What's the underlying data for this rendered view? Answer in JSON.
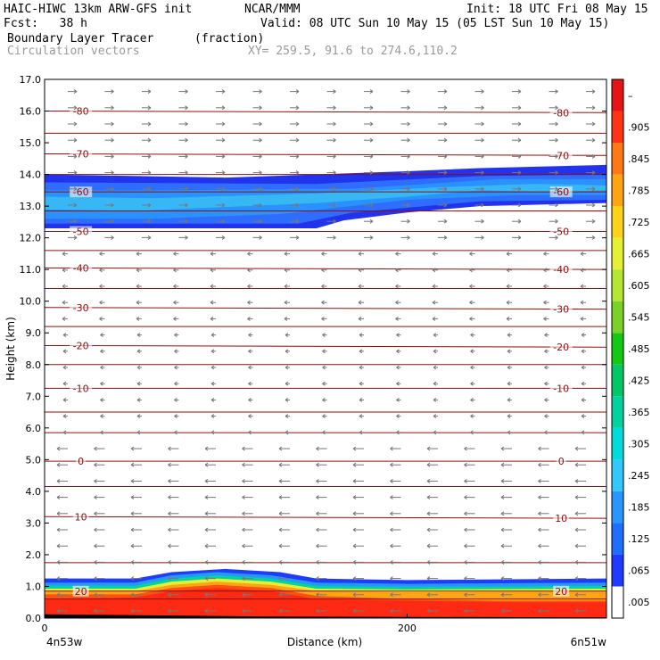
{
  "header": {
    "model": "HAIC-HIWC 13km ARW-GFS init",
    "org": "NCAR/MMM",
    "init": "Init: 18 UTC Fri 08 May 15",
    "fcst": "Fcst:   38 h",
    "valid": "Valid: 08 UTC Sun 10 May 15 (05 LST Sun 10 May 15)",
    "field": "Boundary Layer Tracer",
    "units": "(fraction)",
    "vectors": "Circulation vectors",
    "xy": "XY= 259.5, 91.6 to 274.6,110.2"
  },
  "chart_data": {
    "type": "heatmap",
    "xlabel": "Distance (km)",
    "ylabel": "Height (km)",
    "x_range": [
      0,
      310
    ],
    "ylim": [
      0,
      17
    ],
    "x_ticks": [
      0,
      200
    ],
    "x_tick_labels": [
      "0",
      "200"
    ],
    "x_end_labels": {
      "left": "4n53w",
      "right": "6n51w"
    },
    "y_ticks": [
      0,
      1,
      2,
      3,
      4,
      5,
      6,
      7,
      8,
      9,
      10,
      11,
      12,
      13,
      14,
      15,
      16,
      17
    ],
    "y_tick_labels": [
      "0.0",
      "1.0",
      "2.0",
      "3.0",
      "4.0",
      "5.0",
      "6.0",
      "7.0",
      "8.0",
      "9.0",
      "10.0",
      "11.0",
      "12.0",
      "13.0",
      "14.0",
      "15.0",
      "16.0",
      "17.0"
    ],
    "colorbar": {
      "labels": [
        ".005",
        ".065",
        ".125",
        ".185",
        ".245",
        ".305",
        ".365",
        ".425",
        ".485",
        ".545",
        ".605",
        ".665",
        ".725",
        ".785",
        ".845",
        ".905",
        "–"
      ],
      "colors": [
        "#ffffff",
        "#1e3cff",
        "#1e6eff",
        "#2896ff",
        "#32c8ff",
        "#00dcdc",
        "#00d2a0",
        "#00c864",
        "#14c814",
        "#78d228",
        "#b4e632",
        "#e6f032",
        "#ffd219",
        "#ffa514",
        "#ff7814",
        "#ff3214",
        "#e61414"
      ]
    },
    "isotherms": [
      {
        "label": "-80",
        "left_km": 16.0,
        "right_km": 15.95
      },
      {
        "label": "-70",
        "left_km": 14.65,
        "right_km": 14.6
      },
      {
        "label": "-60",
        "left_km": 13.45,
        "right_km": 13.45
      },
      {
        "label": "-50",
        "left_km": 12.2,
        "right_km": 12.2
      },
      {
        "label": "-40",
        "left_km": 11.05,
        "right_km": 11.0
      },
      {
        "label": "-30",
        "left_km": 9.8,
        "right_km": 9.75
      },
      {
        "label": "-20",
        "left_km": 8.6,
        "right_km": 8.55
      },
      {
        "label": "-10",
        "left_km": 7.25,
        "right_km": 7.25
      },
      {
        "label": "0",
        "left_km": 4.95,
        "right_km": 4.95
      },
      {
        "label": "10",
        "left_km": 3.2,
        "right_km": 3.15
      },
      {
        "label": "20",
        "left_km": 0.85,
        "right_km": 0.85
      }
    ],
    "unlabeled_isotherms_km": [
      15.3,
      14.0,
      12.85,
      11.6,
      10.4,
      9.2,
      8.0,
      6.5,
      5.85,
      4.15,
      1.75,
      0.6
    ]
  }
}
